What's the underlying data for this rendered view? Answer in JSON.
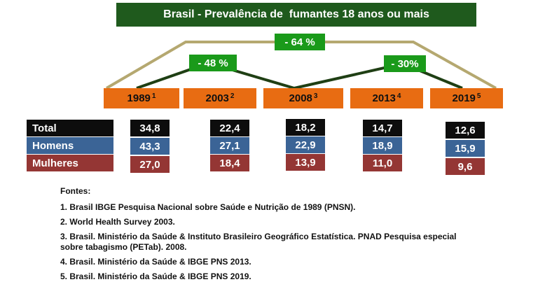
{
  "chart_data": {
    "type": "table",
    "title": "Brasil - Prevalência de  fumantes 18 anos ou mais",
    "years": [
      {
        "label": "1989",
        "ref": "1"
      },
      {
        "label": "2003",
        "ref": "2"
      },
      {
        "label": "2008",
        "ref": "3"
      },
      {
        "label": "2013",
        "ref": "4"
      },
      {
        "label": "2019",
        "ref": "5"
      }
    ],
    "series": [
      {
        "name": "Total",
        "values": [
          "34,8",
          "22,4",
          "18,2",
          "14,7",
          "12,6"
        ],
        "color": "#0d0d0d"
      },
      {
        "name": "Homens",
        "values": [
          "43,3",
          "27,1",
          "22,9",
          "18,9",
          "15,9"
        ],
        "color": "#3b6496"
      },
      {
        "name": "Mulheres",
        "values": [
          "27,0",
          "18,4",
          "13,9",
          "11,0",
          "9,6"
        ],
        "color": "#943634"
      }
    ],
    "annotations": {
      "overall_change": "- 64 %",
      "change_1989_2008": "- 48 %",
      "change_2008_2019": "- 30%"
    },
    "colors": {
      "title_bg": "#1f5a1d",
      "change_bg": "#1a9a1a",
      "year_bg": "#e86c12",
      "outer_line": "#b5a870",
      "inner_line": "#1f3f14"
    }
  },
  "sources": {
    "heading": "Fontes:",
    "items": [
      "1. Brasil IBGE Pesquisa Nacional  sobre Saúde e Nutrição de 1989  (PNSN).",
      "2. World Health Survey 2003.",
      "3. Brasil. Ministério da Saúde & Instituto Brasileiro Geográfico Estatística. PNAD  Pesquisa especial sobre tabagismo (PETab). 2008.",
      "4. Brasil. Ministério da Saúde & IBGE PNS 2013.",
      "5. Brasil. Ministério da Saúde & IBGE PNS 2019."
    ]
  }
}
